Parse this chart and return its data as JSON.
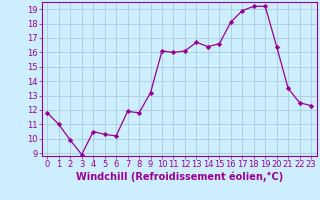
{
  "x": [
    0,
    1,
    2,
    3,
    4,
    5,
    6,
    7,
    8,
    9,
    10,
    11,
    12,
    13,
    14,
    15,
    16,
    17,
    18,
    19,
    20,
    21,
    22,
    23
  ],
  "y": [
    11.8,
    11.0,
    9.9,
    8.9,
    10.5,
    10.3,
    10.2,
    11.9,
    11.8,
    13.2,
    16.1,
    16.0,
    16.1,
    16.7,
    16.4,
    16.6,
    18.1,
    18.9,
    19.2,
    19.2,
    16.4,
    13.5,
    12.5,
    12.3
  ],
  "line_color": "#990099",
  "marker": "D",
  "marker_size": 2.2,
  "bg_color": "#cceeff",
  "grid_color": "#aaccdd",
  "xlabel": "Windchill (Refroidissement éolien,°C)",
  "ylabel": "",
  "ylim_min": 8.8,
  "ylim_max": 19.5,
  "xlim_min": -0.5,
  "xlim_max": 23.5,
  "yticks": [
    9,
    10,
    11,
    12,
    13,
    14,
    15,
    16,
    17,
    18,
    19
  ],
  "xticks": [
    0,
    1,
    2,
    3,
    4,
    5,
    6,
    7,
    8,
    9,
    10,
    11,
    12,
    13,
    14,
    15,
    16,
    17,
    18,
    19,
    20,
    21,
    22,
    23
  ],
  "tick_color": "#990099",
  "label_color": "#990099",
  "label_fontsize": 7.0,
  "tick_fontsize": 6.0,
  "spine_color": "#990099",
  "line_width": 0.9
}
